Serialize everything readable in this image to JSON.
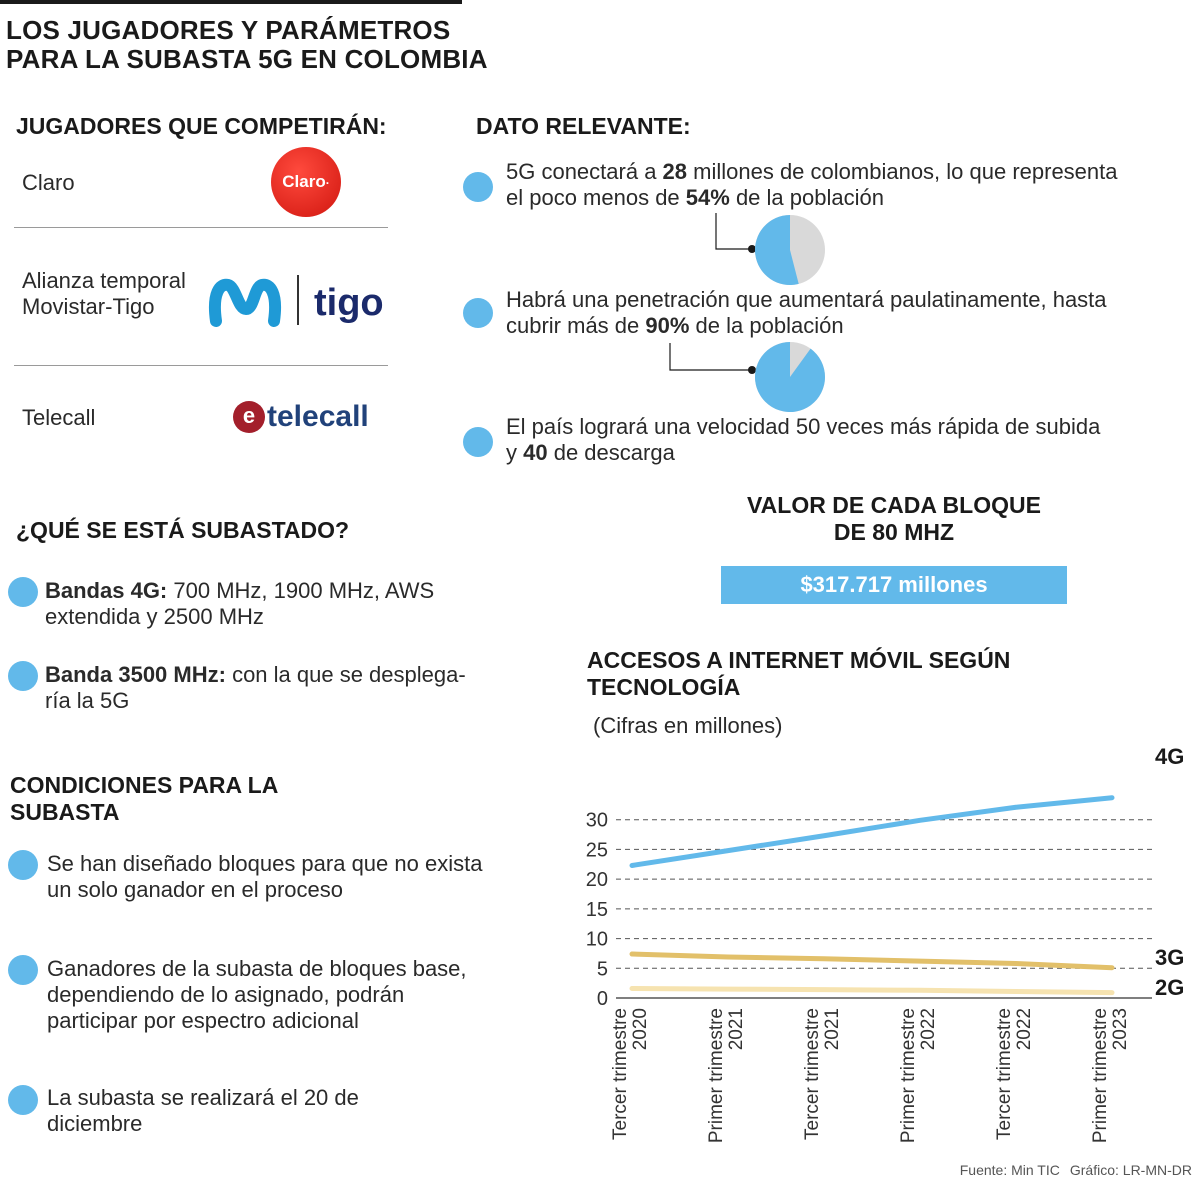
{
  "title": [
    "LOS JUGADORES Y PARÁMETROS",
    "PARA LA SUBASTA 5G EN COLOMBIA"
  ],
  "players": {
    "heading": "JUGADORES QUE COMPETIRÁN:",
    "items": [
      {
        "name_lines": [
          "Claro"
        ],
        "logo_text": "Claro"
      },
      {
        "name_lines": [
          "Alianza temporal",
          "Movistar-Tigo"
        ],
        "logo_text": "tigo"
      },
      {
        "name_lines": [
          "Telecall"
        ],
        "logo_text": "telecall"
      }
    ]
  },
  "dato": {
    "heading": "DATO RELEVANTE:",
    "items": [
      {
        "line1": [
          "5G conectará a ",
          "28",
          " millones de colombianos, lo que representa"
        ],
        "line2": [
          "el poco menos de ",
          "54%",
          " de la población"
        ],
        "pie_percent": 54
      },
      {
        "line1": [
          " Habrá una penetración que aumentará paulatinamente, hasta"
        ],
        "line2": [
          "cubrir más de ",
          "90%",
          " de la población"
        ],
        "pie_percent": 90
      },
      {
        "line1": [
          "El país logrará una velocidad 50 veces más rápida de subida"
        ],
        "line2": [
          "y ",
          "40",
          " de descarga"
        ]
      }
    ]
  },
  "subasta": {
    "heading": "¿QUÉ SE ESTÁ SUBASTADO?",
    "items": [
      {
        "bold": "Bandas 4G:",
        "rest": " 700 MHz, 1900 MHz, AWS",
        "line2": "extendida y 2500 MHz"
      },
      {
        "bold": "Banda 3500 MHz:",
        "rest": " con la que se desplega-",
        "line2": "ría la 5G"
      }
    ]
  },
  "valor": {
    "heading": [
      "VALOR DE CADA BLOQUE",
      "DE 80 MHZ"
    ],
    "amount": "$317.717 millones"
  },
  "condiciones": {
    "heading": [
      "CONDICIONES PARA LA",
      "SUBASTA"
    ],
    "items": [
      [
        "Se han diseñado bloques para que no exista",
        "un solo ganador en el proceso"
      ],
      [
        "Ganadores de la subasta de bloques base,",
        "dependiendo de lo asignado, podrán",
        "participar por espectro adicional"
      ],
      [
        "La subasta se realizará el 20 de",
        "diciembre"
      ]
    ]
  },
  "chart_data": {
    "type": "line",
    "title": [
      "ACCESOS A INTERNET MÓVIL SEGÚN",
      "TECNOLOGÍA"
    ],
    "subtitle": "(Cifras en millones)",
    "categories": [
      "Tercer trimestre 2020",
      "Primer trimestre 2021",
      "Tercer trimestre 2021",
      "Primer trimestre 2022",
      "Tercer trimestre 2022",
      "Primer trimestre 2023"
    ],
    "category_lines": [
      [
        "Tercer trimestre",
        "2020"
      ],
      [
        "Primer trimestre",
        "2021"
      ],
      [
        "Tercer trimestre",
        "2021"
      ],
      [
        "Primer trimestre",
        "2022"
      ],
      [
        "Tercer trimestre",
        "2022"
      ],
      [
        "Primer trimestre",
        "2023"
      ]
    ],
    "series": [
      {
        "name": "4G",
        "color": "#62b9ea",
        "values": [
          22.3,
          24.8,
          27.3,
          29.9,
          32.1,
          33.7
        ]
      },
      {
        "name": "3G",
        "color": "#e2c06a",
        "values": [
          7.4,
          6.9,
          6.6,
          6.2,
          5.8,
          5.1
        ]
      },
      {
        "name": "2G",
        "color": "#f6e3b0",
        "values": [
          1.6,
          1.5,
          1.4,
          1.3,
          1.1,
          0.9
        ]
      }
    ],
    "y_ticks": [
      0,
      5,
      10,
      15,
      20,
      25,
      30
    ],
    "ylim": [
      0,
      35
    ],
    "grid": true
  },
  "footer": {
    "fuente": "Fuente: Min TIC",
    "grafico": "Gráfico: LR-MN-DR"
  },
  "colors": {
    "accent": "#62b9ea",
    "pie_rest": "#d9d9d9",
    "claro_red": "#e1251b",
    "movistar_blue": "#1f9ad6",
    "tigo_navy": "#1b2a6b",
    "telecall_red": "#a31f2b",
    "telecall_blue": "#21427a"
  }
}
